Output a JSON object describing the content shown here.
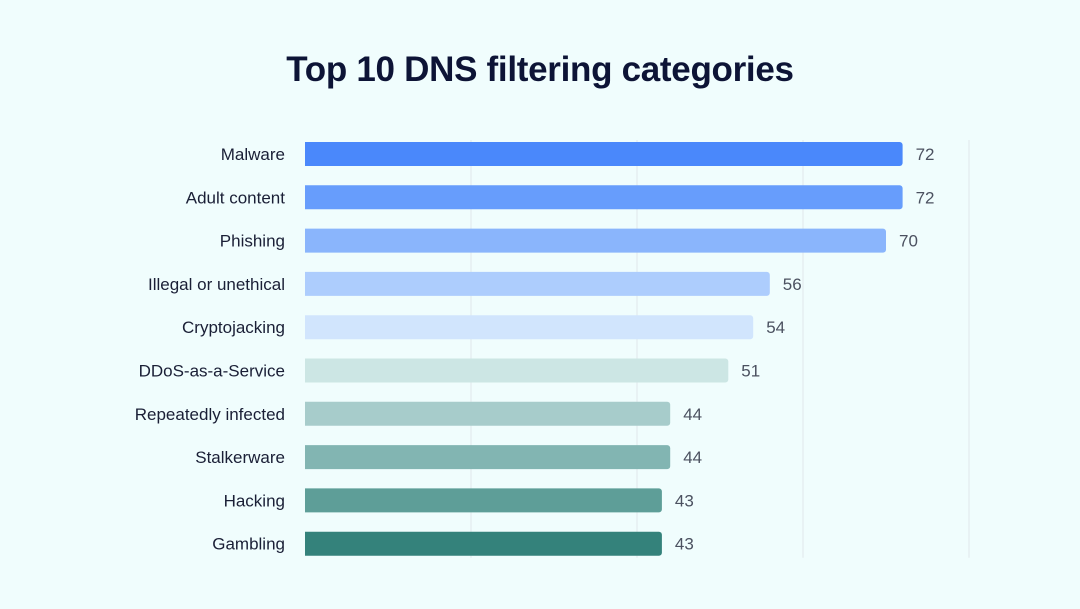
{
  "chart_data": {
    "type": "bar",
    "orientation": "horizontal",
    "title": "Top 10 DNS filtering categories",
    "xlabel": "",
    "ylabel": "",
    "xlim": [
      0,
      80
    ],
    "grid": true,
    "categories": [
      "Malware",
      "Adult content",
      "Phishing",
      "Illegal or unethical",
      "Cryptojacking",
      "DDoS-as-a-Service",
      "Repeatedly infected",
      "Stalkerware",
      "Hacking",
      "Gambling"
    ],
    "values": [
      72,
      72,
      70,
      56,
      54,
      51,
      44,
      44,
      43,
      43
    ],
    "colors": [
      "#4a88fb",
      "#679dfc",
      "#8ab5fc",
      "#adcdfd",
      "#d1e5fd",
      "#cce6e4",
      "#a7cccb",
      "#82b5b2",
      "#5e9e98",
      "#34827b"
    ]
  }
}
